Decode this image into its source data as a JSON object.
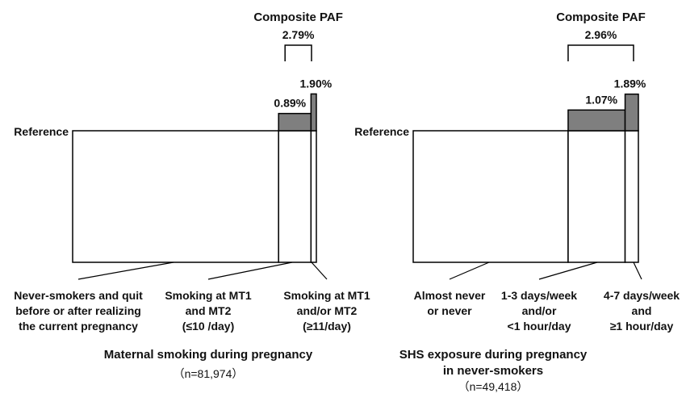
{
  "chart_data": [
    {
      "type": "bar",
      "title": "Maternal smoking during pregnancy",
      "subtitle": "（n=81,974）",
      "reference_label": "Reference",
      "composite": {
        "label": "Composite PAF",
        "value": "2.79%"
      },
      "categories": [
        "Never-smokers and quit before or after realizing the current pregnancy",
        "Smoking at MT1 and MT2 (≤10 /day)",
        "Smoking at MT1 and/or MT2 (≥11/day)"
      ],
      "category_lines": [
        [
          "Never-smokers and quit",
          "before or after realizing",
          "the current pregnancy"
        ],
        [
          "Smoking at MT1",
          "and MT2",
          "(≤10 /day)"
        ],
        [
          "Smoking at MT1",
          "and/or MT2",
          "(≥11/day)"
        ]
      ],
      "proportions": [
        0.845,
        0.133,
        0.022
      ],
      "paf": [
        null,
        0.89,
        1.9
      ],
      "paf_labels": [
        "",
        "0.89%",
        "1.90%"
      ]
    },
    {
      "type": "bar",
      "title": "SHS exposure during pregnancy",
      "title_line2": "in never-smokers",
      "subtitle": "（n=49,418）",
      "reference_label": "Reference",
      "composite": {
        "label": "Composite PAF",
        "value": "2.96%"
      },
      "categories": [
        "Almost never or never",
        "1-3 days/week and/or <1 hour/day",
        "4-7 days/week and ≥1 hour/day"
      ],
      "category_lines": [
        [
          "Almost never",
          "or never"
        ],
        [
          "1-3 days/week",
          "and/or",
          "<1 hour/day"
        ],
        [
          "4-7 days/week",
          "and",
          "≥1 hour/day"
        ]
      ],
      "proportions": [
        0.688,
        0.253,
        0.059
      ],
      "paf": [
        null,
        1.07,
        1.89
      ],
      "paf_labels": [
        "",
        "1.07%",
        "1.89%"
      ]
    }
  ],
  "colors": {
    "increment_fill": "#7f7f7f",
    "box_fill": "#ffffff",
    "stroke": "#000000"
  }
}
